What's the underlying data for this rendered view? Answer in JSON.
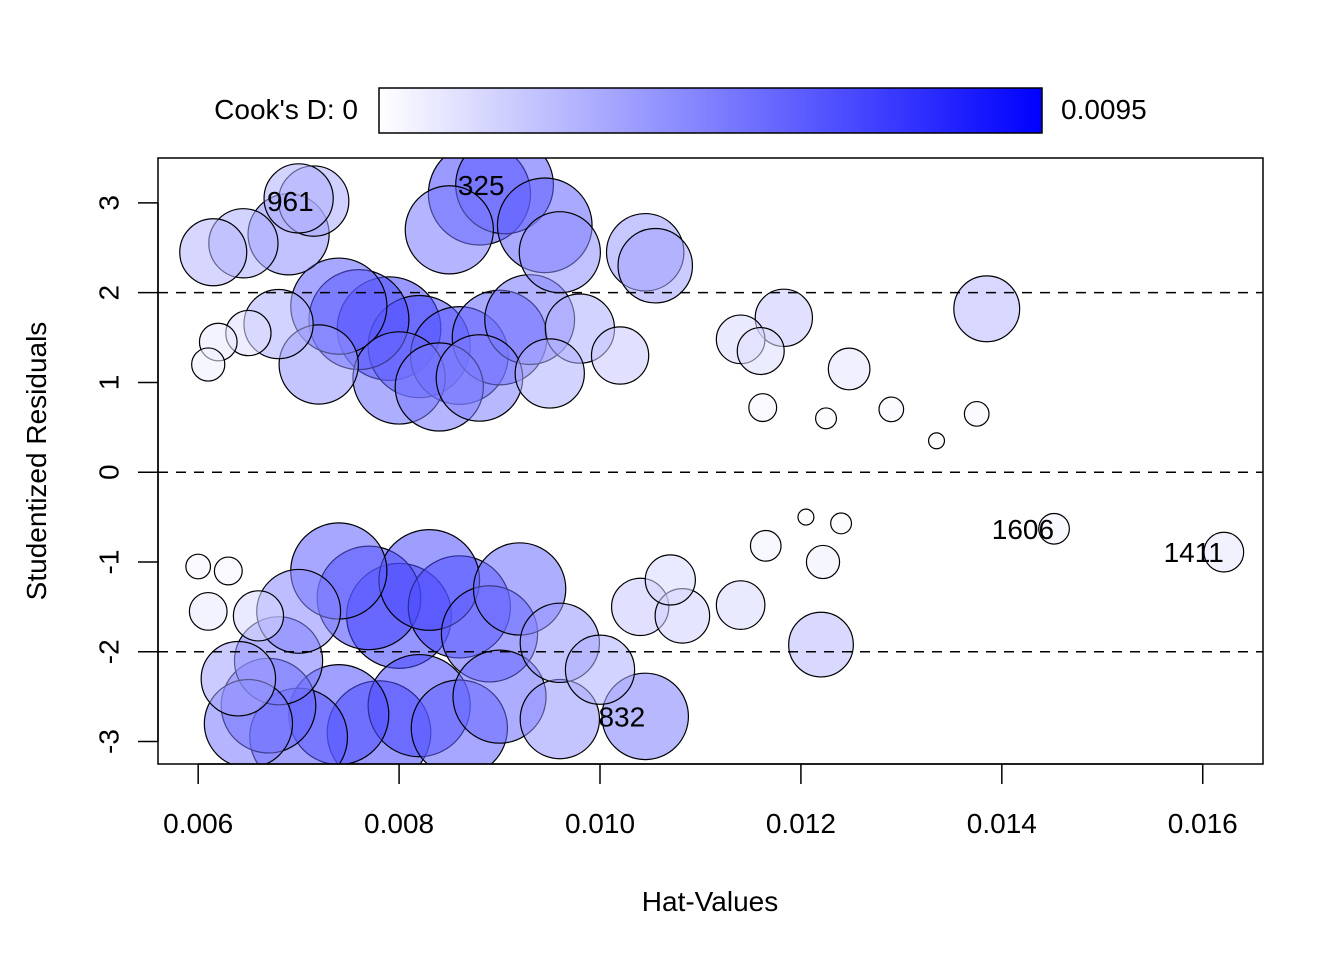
{
  "chart_data": {
    "type": "scatter",
    "title": "",
    "xlabel": "Hat-Values",
    "ylabel": "Studentized Residuals",
    "xlim": [
      0.0056,
      0.0166
    ],
    "ylim": [
      -3.25,
      3.5
    ],
    "x_ticks": [
      0.006,
      0.008,
      0.01,
      0.012,
      0.014,
      0.016
    ],
    "x_tick_labels": [
      "0.006",
      "0.008",
      "0.010",
      "0.012",
      "0.014",
      "0.016"
    ],
    "y_ticks": [
      -3,
      -2,
      -1,
      0,
      1,
      2,
      3
    ],
    "y_tick_labels": [
      "-3",
      "-2",
      "-1",
      "0",
      "1",
      "2",
      "3"
    ],
    "reference_lines_y": [
      -2,
      0,
      2
    ],
    "grid": false,
    "legend": {
      "position": "top",
      "label_left": "Cook's D: 0",
      "label_right": "0.0095",
      "colors": [
        "#ffffff",
        "#0000ff"
      ]
    },
    "cooks_d_range": [
      0,
      0.0095
    ],
    "point_color": "#0000ff",
    "highlighted_points": [
      {
        "id": "961",
        "x": 0.00715,
        "y": 3.02,
        "cooks_d": 0.0031
      },
      {
        "id": "325",
        "x": 0.00905,
        "y": 3.2,
        "cooks_d": 0.0062
      },
      {
        "id": "832",
        "x": 0.01045,
        "y": -2.72,
        "cooks_d": 0.0048
      },
      {
        "id": "1606",
        "x": 0.01452,
        "y": -0.63,
        "cooks_d": 0.0005
      },
      {
        "id": "1411",
        "x": 0.01621,
        "y": -0.89,
        "cooks_d": 0.0009
      }
    ],
    "points": [
      {
        "x": 0.01385,
        "y": 1.82,
        "cooks_d": 0.0027
      },
      {
        "x": 0.0122,
        "y": -1.92,
        "cooks_d": 0.0026
      },
      {
        "x": 0.01248,
        "y": 1.15,
        "cooks_d": 0.001
      },
      {
        "x": 0.0129,
        "y": 0.7,
        "cooks_d": 0.0003
      },
      {
        "x": 0.01375,
        "y": 0.65,
        "cooks_d": 0.0003
      },
      {
        "x": 0.01335,
        "y": 0.35,
        "cooks_d": 0.0001
      },
      {
        "x": 0.01225,
        "y": 0.6,
        "cooks_d": 0.0002
      },
      {
        "x": 0.01183,
        "y": 1.72,
        "cooks_d": 0.002
      },
      {
        "x": 0.0116,
        "y": 1.35,
        "cooks_d": 0.0013
      },
      {
        "x": 0.0114,
        "y": 1.48,
        "cooks_d": 0.0014
      },
      {
        "x": 0.01162,
        "y": 0.72,
        "cooks_d": 0.0004
      },
      {
        "x": 0.0114,
        "y": -1.48,
        "cooks_d": 0.0014
      },
      {
        "x": 0.01222,
        "y": -1.0,
        "cooks_d": 0.0006
      },
      {
        "x": 0.01165,
        "y": -0.82,
        "cooks_d": 0.0005
      },
      {
        "x": 0.0124,
        "y": -0.57,
        "cooks_d": 0.0002
      },
      {
        "x": 0.01205,
        "y": -0.5,
        "cooks_d": 0.0001
      },
      {
        "x": 0.01082,
        "y": -1.6,
        "cooks_d": 0.0018
      },
      {
        "x": 0.01055,
        "y": 2.3,
        "cooks_d": 0.0035
      },
      {
        "x": 0.01045,
        "y": 2.45,
        "cooks_d": 0.0038
      },
      {
        "x": 0.0096,
        "y": 2.45,
        "cooks_d": 0.0042
      },
      {
        "x": 0.00945,
        "y": 2.75,
        "cooks_d": 0.0058
      },
      {
        "x": 0.0088,
        "y": 3.1,
        "cooks_d": 0.0068
      },
      {
        "x": 0.0085,
        "y": 2.7,
        "cooks_d": 0.005
      },
      {
        "x": 0.007,
        "y": 3.05,
        "cooks_d": 0.003
      },
      {
        "x": 0.00615,
        "y": 2.45,
        "cooks_d": 0.0028
      },
      {
        "x": 0.00645,
        "y": 2.55,
        "cooks_d": 0.003
      },
      {
        "x": 0.0069,
        "y": 2.65,
        "cooks_d": 0.0042
      },
      {
        "x": 0.0076,
        "y": 1.7,
        "cooks_d": 0.0065
      },
      {
        "x": 0.0074,
        "y": 1.85,
        "cooks_d": 0.006
      },
      {
        "x": 0.0079,
        "y": 1.6,
        "cooks_d": 0.007
      },
      {
        "x": 0.0082,
        "y": 1.4,
        "cooks_d": 0.0068
      },
      {
        "x": 0.0086,
        "y": 1.3,
        "cooks_d": 0.0062
      },
      {
        "x": 0.009,
        "y": 1.5,
        "cooks_d": 0.0058
      },
      {
        "x": 0.0093,
        "y": 1.7,
        "cooks_d": 0.0052
      },
      {
        "x": 0.0098,
        "y": 1.6,
        "cooks_d": 0.003
      },
      {
        "x": 0.0102,
        "y": 1.3,
        "cooks_d": 0.002
      },
      {
        "x": 0.0062,
        "y": 1.45,
        "cooks_d": 0.0008
      },
      {
        "x": 0.0061,
        "y": 1.2,
        "cooks_d": 0.0006
      },
      {
        "x": 0.0065,
        "y": 1.55,
        "cooks_d": 0.0012
      },
      {
        "x": 0.0068,
        "y": 1.65,
        "cooks_d": 0.003
      },
      {
        "x": 0.0072,
        "y": 1.2,
        "cooks_d": 0.004
      },
      {
        "x": 0.008,
        "y": 1.05,
        "cooks_d": 0.0055
      },
      {
        "x": 0.0084,
        "y": 0.95,
        "cooks_d": 0.005
      },
      {
        "x": 0.0088,
        "y": 1.05,
        "cooks_d": 0.0048
      },
      {
        "x": 0.0095,
        "y": 1.1,
        "cooks_d": 0.003
      },
      {
        "x": 0.0077,
        "y": -1.4,
        "cooks_d": 0.007
      },
      {
        "x": 0.008,
        "y": -1.6,
        "cooks_d": 0.0072
      },
      {
        "x": 0.0083,
        "y": -1.2,
        "cooks_d": 0.0066
      },
      {
        "x": 0.0086,
        "y": -1.5,
        "cooks_d": 0.0068
      },
      {
        "x": 0.0089,
        "y": -1.8,
        "cooks_d": 0.006
      },
      {
        "x": 0.0092,
        "y": -1.3,
        "cooks_d": 0.0055
      },
      {
        "x": 0.0074,
        "y": -1.1,
        "cooks_d": 0.006
      },
      {
        "x": 0.007,
        "y": -1.55,
        "cooks_d": 0.0045
      },
      {
        "x": 0.0068,
        "y": -2.1,
        "cooks_d": 0.005
      },
      {
        "x": 0.0067,
        "y": -2.6,
        "cooks_d": 0.0058
      },
      {
        "x": 0.0065,
        "y": -2.8,
        "cooks_d": 0.005
      },
      {
        "x": 0.007,
        "y": -2.95,
        "cooks_d": 0.0062
      },
      {
        "x": 0.0074,
        "y": -2.7,
        "cooks_d": 0.0065
      },
      {
        "x": 0.0078,
        "y": -2.9,
        "cooks_d": 0.007
      },
      {
        "x": 0.0082,
        "y": -2.6,
        "cooks_d": 0.0068
      },
      {
        "x": 0.0086,
        "y": -2.85,
        "cooks_d": 0.006
      },
      {
        "x": 0.009,
        "y": -2.5,
        "cooks_d": 0.0056
      },
      {
        "x": 0.0096,
        "y": -2.75,
        "cooks_d": 0.004
      },
      {
        "x": 0.01,
        "y": -2.2,
        "cooks_d": 0.003
      },
      {
        "x": 0.0096,
        "y": -1.9,
        "cooks_d": 0.004
      },
      {
        "x": 0.0104,
        "y": -1.5,
        "cooks_d": 0.002
      },
      {
        "x": 0.0107,
        "y": -1.2,
        "cooks_d": 0.0015
      },
      {
        "x": 0.0061,
        "y": -1.55,
        "cooks_d": 0.0008
      },
      {
        "x": 0.006,
        "y": -1.05,
        "cooks_d": 0.0003
      },
      {
        "x": 0.0063,
        "y": -1.1,
        "cooks_d": 0.0004
      },
      {
        "x": 0.0066,
        "y": -1.6,
        "cooks_d": 0.0015
      },
      {
        "x": 0.0064,
        "y": -2.3,
        "cooks_d": 0.0035
      }
    ]
  }
}
